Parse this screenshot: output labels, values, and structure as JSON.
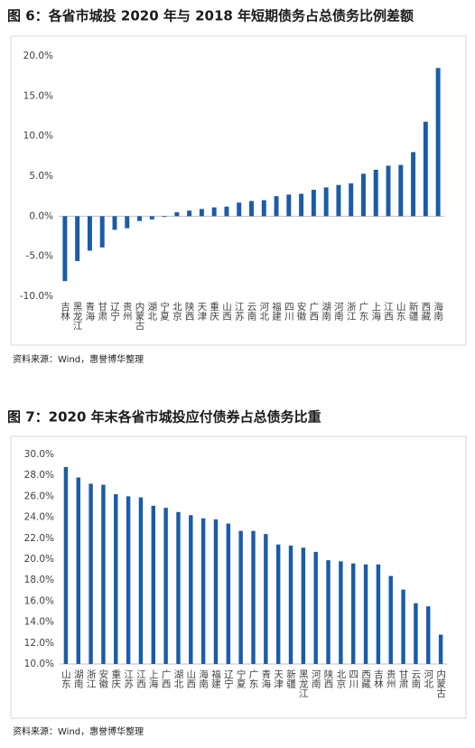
{
  "chart_data": [
    {
      "type": "bar",
      "title": "图 6：各省市城投 2020 年与 2018 年短期债务占总债务比例差额",
      "source": "资料来源：Wind，惠誉博华整理",
      "color": "#1a5ca8",
      "categories": [
        "吉林",
        "黑龙江",
        "青海",
        "甘肃",
        "辽宁",
        "贵州",
        "内蒙古",
        "湖北",
        "宁夏",
        "北京",
        "陕西",
        "天津",
        "重庆",
        "山西",
        "江苏",
        "云南",
        "河北",
        "福建",
        "四川",
        "安徽",
        "广西",
        "湖南",
        "河南",
        "浙江",
        "广东",
        "上海",
        "江西",
        "山东",
        "新疆",
        "西藏",
        "海南"
      ],
      "values": [
        -8.1,
        -5.6,
        -4.3,
        -3.9,
        -1.7,
        -1.5,
        -0.6,
        -0.4,
        -0.1,
        0.5,
        0.7,
        0.9,
        1.1,
        1.2,
        1.7,
        1.9,
        2.0,
        2.5,
        2.7,
        2.8,
        3.3,
        3.6,
        3.9,
        4.1,
        5.3,
        5.8,
        6.3,
        6.4,
        8.0,
        11.8,
        18.5
      ],
      "ylim": [
        -10,
        20
      ],
      "yticks": [
        {
          "value": -10,
          "label": "-10.0%"
        },
        {
          "value": -5,
          "label": "-5.0%"
        },
        {
          "value": 0,
          "label": "0.0%"
        },
        {
          "value": 5,
          "label": "5.0%"
        },
        {
          "value": 10,
          "label": "10.0%"
        },
        {
          "value": 15,
          "label": "15.0%"
        },
        {
          "value": 20,
          "label": "20.0%"
        }
      ]
    },
    {
      "type": "bar",
      "title": "图 7：2020 年末各省市城投应付债券占总债务比重",
      "source": "资料来源：Wind，惠誉博华整理",
      "color": "#1a5ca8",
      "categories": [
        "山东",
        "湖南",
        "浙江",
        "安徽",
        "重庆",
        "江苏",
        "江西",
        "上海",
        "广西",
        "湖北",
        "山西",
        "海南",
        "福建",
        "辽宁",
        "宁夏",
        "广东",
        "青海",
        "天津",
        "新疆",
        "黑龙江",
        "河南",
        "陕西",
        "北京",
        "四川",
        "西藏",
        "吉林",
        "贵州",
        "甘肃",
        "云南",
        "河北",
        "内蒙古"
      ],
      "values": [
        28.8,
        27.8,
        27.2,
        27.1,
        26.2,
        26.0,
        25.9,
        25.1,
        24.9,
        24.5,
        24.2,
        23.9,
        23.8,
        23.4,
        22.7,
        22.7,
        22.4,
        21.4,
        21.3,
        21.1,
        20.7,
        19.9,
        19.8,
        19.6,
        19.5,
        19.5,
        18.4,
        17.1,
        15.8,
        15.5,
        12.8
      ],
      "ylim": [
        10,
        30
      ],
      "yticks": [
        {
          "value": 10,
          "label": "10.0%"
        },
        {
          "value": 12,
          "label": "12.0%"
        },
        {
          "value": 14,
          "label": "14.0%"
        },
        {
          "value": 16,
          "label": "16.0%"
        },
        {
          "value": 18,
          "label": "18.0%"
        },
        {
          "value": 20,
          "label": "20.0%"
        },
        {
          "value": 22,
          "label": "22.0%"
        },
        {
          "value": 24,
          "label": "24.0%"
        },
        {
          "value": 26,
          "label": "26.0%"
        },
        {
          "value": 28,
          "label": "28.0%"
        },
        {
          "value": 30,
          "label": "30.0%"
        }
      ]
    }
  ]
}
